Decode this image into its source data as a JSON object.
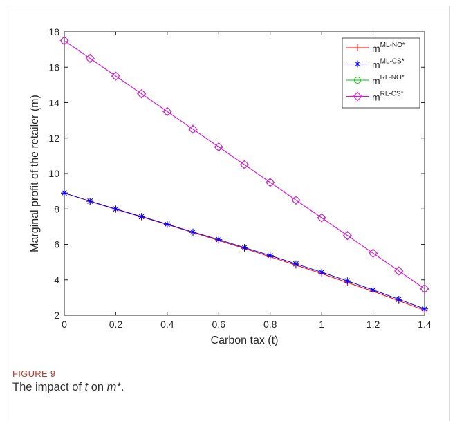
{
  "figure": {
    "label": "FIGURE 9",
    "caption_pre": "The impact of ",
    "caption_var_t": "t",
    "caption_mid": " on ",
    "caption_var_m": "m*",
    "caption_post": "."
  },
  "chart_data": {
    "type": "line",
    "title": "",
    "xlabel": "Carbon tax (t)",
    "ylabel": "Marginal profit of the retailer (m)",
    "xlim": [
      0,
      1.4
    ],
    "ylim": [
      2,
      18
    ],
    "xticks": [
      0,
      0.2,
      0.4,
      0.6,
      0.8,
      1,
      1.2,
      1.4
    ],
    "xtick_labels": [
      "0",
      "0.2",
      "0.4",
      "0.6",
      "0.8",
      "1",
      "1.2",
      "1.4"
    ],
    "yticks": [
      2,
      4,
      6,
      8,
      10,
      12,
      14,
      16,
      18
    ],
    "ytick_labels": [
      "2",
      "4",
      "6",
      "8",
      "10",
      "12",
      "14",
      "16",
      "18"
    ],
    "grid": false,
    "legend_position": "top-right",
    "x": [
      0,
      0.1,
      0.2,
      0.3,
      0.4,
      0.5,
      0.6,
      0.7,
      0.8,
      0.9,
      1.0,
      1.1,
      1.2,
      1.3,
      1.4
    ],
    "series": [
      {
        "name_base": "m",
        "name_sup": "ML-NO*",
        "color": "#ff0000",
        "marker": "plus",
        "values": [
          8.9,
          8.43,
          7.98,
          7.55,
          7.12,
          6.67,
          6.22,
          5.77,
          5.3,
          4.83,
          4.35,
          3.85,
          3.35,
          2.82,
          2.28
        ]
      },
      {
        "name_base": "m",
        "name_sup": "ML-CS*",
        "color": "#0000ff",
        "marker": "asterisk",
        "values": [
          8.9,
          8.44,
          8.0,
          7.57,
          7.14,
          6.7,
          6.27,
          5.82,
          5.37,
          4.9,
          4.43,
          3.94,
          3.43,
          2.9,
          2.36
        ]
      },
      {
        "name_base": "m",
        "name_sup": "RL-NO*",
        "color": "#00cc00",
        "marker": "circle",
        "values": [
          17.5,
          16.5,
          15.5,
          14.5,
          13.5,
          12.5,
          11.5,
          10.5,
          9.5,
          8.5,
          7.5,
          6.5,
          5.5,
          4.5,
          3.5
        ]
      },
      {
        "name_base": "m",
        "name_sup": "RL-CS*",
        "color": "#ff00ff",
        "marker": "diamond",
        "values": [
          17.5,
          16.5,
          15.5,
          14.5,
          13.5,
          12.5,
          11.5,
          10.5,
          9.5,
          8.5,
          7.5,
          6.5,
          5.5,
          4.5,
          3.5
        ]
      }
    ]
  }
}
